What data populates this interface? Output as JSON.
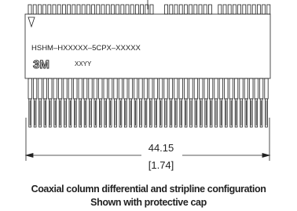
{
  "drawing": {
    "part_number": "HSHM–HXXXXX–5CPX–XXXXX",
    "logo": "3M",
    "date_code": "XXYY",
    "dimension": {
      "mm": "44.15",
      "inch": "[1.74]"
    }
  },
  "caption": [
    "Coaxial column differential and stripline configuration",
    "Shown with protective cap"
  ]
}
